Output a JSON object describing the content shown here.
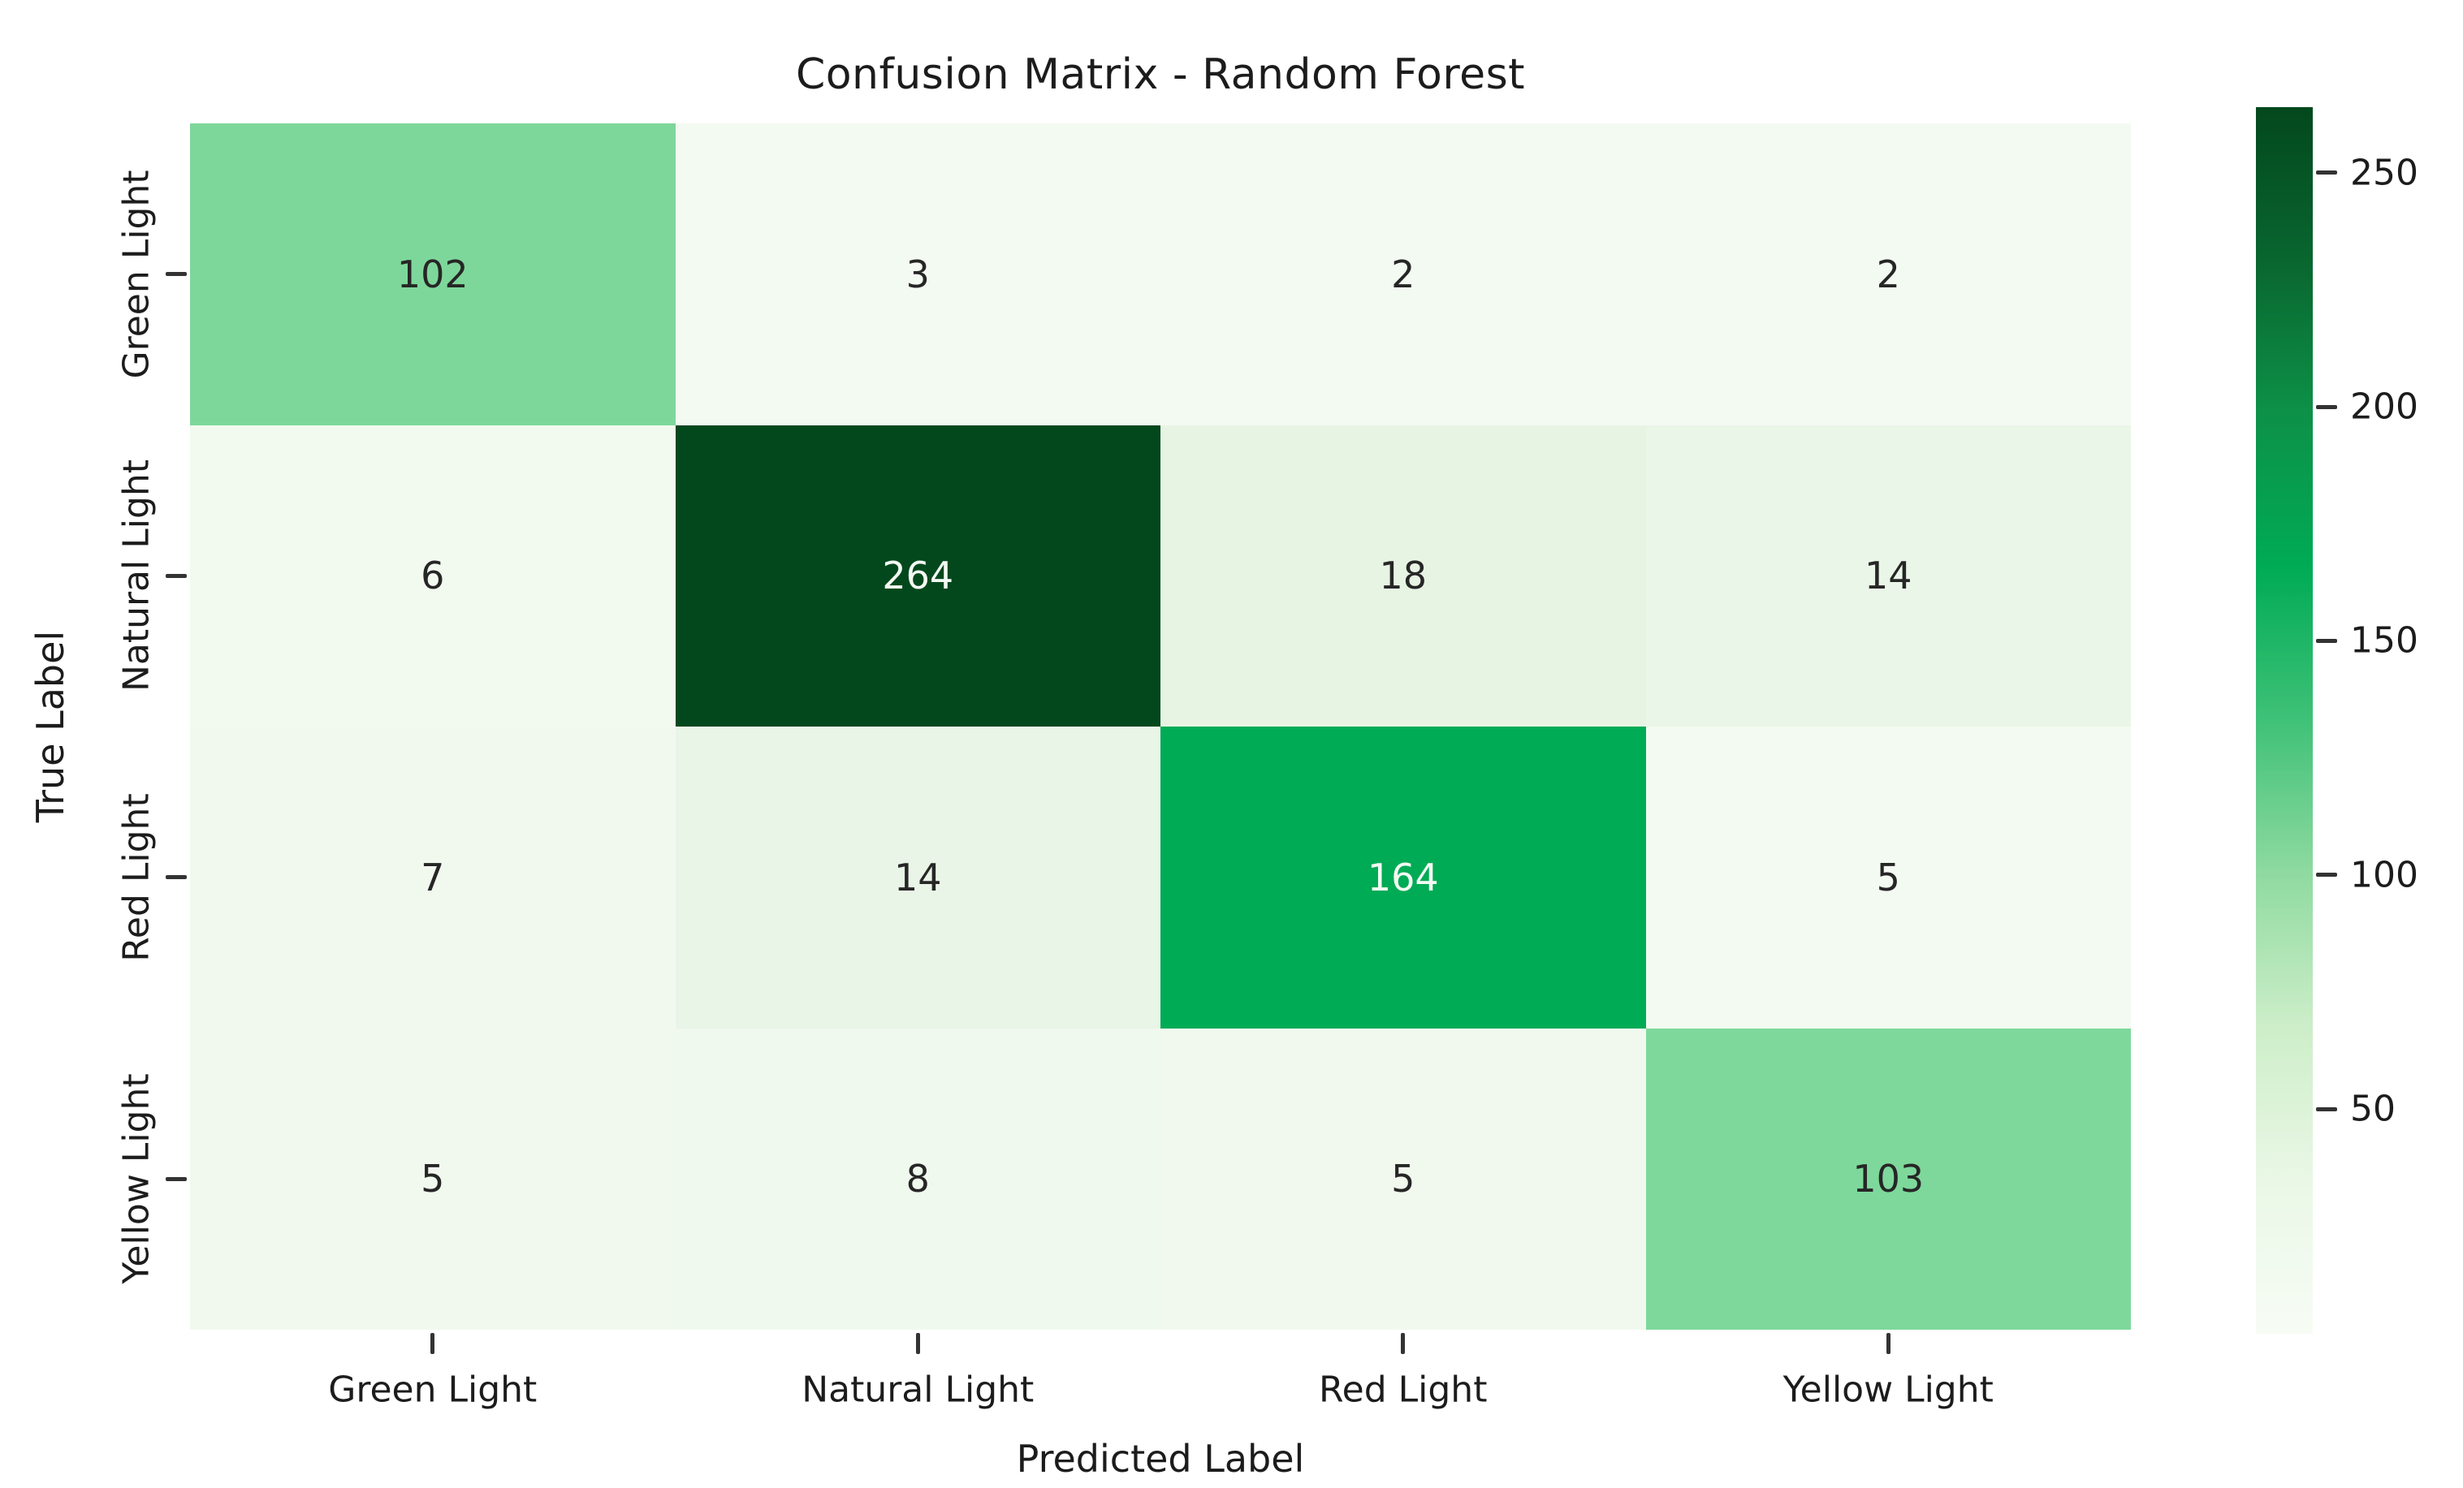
{
  "chart_data": {
    "type": "heatmap",
    "title": "Confusion Matrix - Random Forest",
    "xlabel": "Predicted Label",
    "ylabel": "True Label",
    "x_categories": [
      "Green Light",
      "Natural Light",
      "Red Light",
      "Yellow Light"
    ],
    "y_categories": [
      "Green Light",
      "Natural Light",
      "Red Light",
      "Yellow Light"
    ],
    "matrix": [
      [
        102,
        3,
        2,
        2
      ],
      [
        6,
        264,
        18,
        14
      ],
      [
        7,
        14,
        164,
        5
      ],
      [
        5,
        8,
        5,
        103
      ]
    ],
    "vmin": 2,
    "vmax": 264,
    "colormap": "Greens",
    "grid": false,
    "colorbar_position": "right",
    "colorbar_ticks": [
      50,
      100,
      150,
      200,
      250
    ],
    "cell_colors": [
      [
        "#7ed79a",
        "#f3faf1",
        "#f3faf2",
        "#f3faf2"
      ],
      [
        "#f2faf0",
        "#03481d",
        "#e7f4e4",
        "#eaf6e7"
      ],
      [
        "#f1f9ef",
        "#e9f5e6",
        "#00ab55",
        "#f2faf1"
      ],
      [
        "#f1f9ef",
        "#f0f9ee",
        "#f1f9ef",
        "#7ed89b"
      ]
    ],
    "cell_text_colors": [
      [
        "#262626",
        "#262626",
        "#262626",
        "#262626"
      ],
      [
        "#262626",
        "#f4faf3",
        "#262626",
        "#262626"
      ],
      [
        "#262626",
        "#262626",
        "#f4faf3",
        "#262626"
      ],
      [
        "#262626",
        "#262626",
        "#262626",
        "#262626"
      ]
    ],
    "colorbar_gradient": [
      "#f7fcf5",
      "#eaf7e6",
      "#cdeec9",
      "#8fdaa0",
      "#3fc178",
      "#00ab55",
      "#0d9148",
      "#09662f",
      "#03481d"
    ]
  },
  "colors": {
    "background": "#ffffff",
    "text": "#1c1c1c",
    "tick": "#333333"
  }
}
